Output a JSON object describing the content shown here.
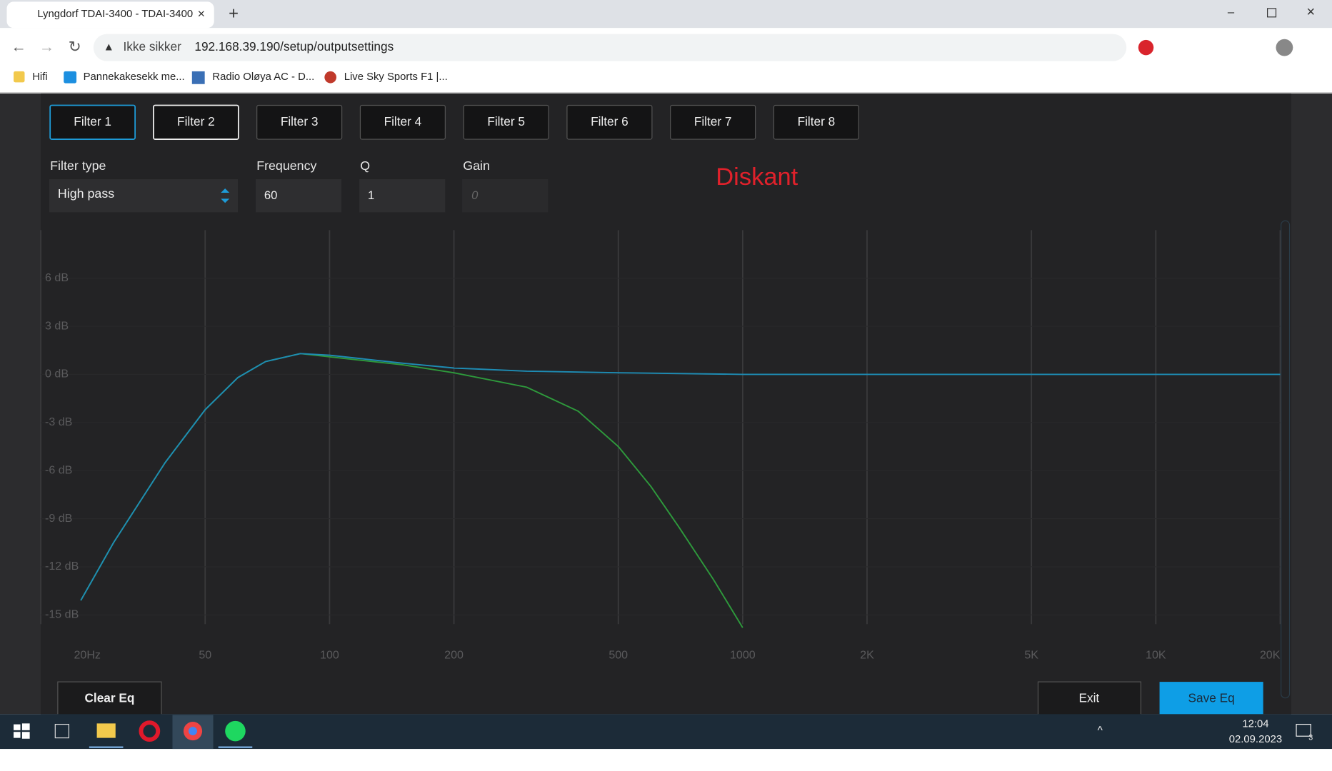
{
  "browser": {
    "tab_title": "Lyngdorf TDAI-3400 - TDAI-3400",
    "security_label": "Ikke sikker",
    "url": "192.168.39.190/setup/outputsettings",
    "bookmarks": [
      "Hifi",
      "Pannekakesekk me...",
      "Radio Oløya AC - D...",
      "Live Sky Sports F1 |..."
    ]
  },
  "filter_tabs": [
    "Filter 1",
    "Filter 2",
    "Filter 3",
    "Filter 4",
    "Filter 5",
    "Filter 6",
    "Filter 7",
    "Filter 8"
  ],
  "fields": {
    "filter_type": {
      "label": "Filter type",
      "value": "High pass"
    },
    "frequency": {
      "label": "Frequency",
      "value": 60
    },
    "q": {
      "label": "Q",
      "value": 1
    },
    "gain": {
      "label": "Gain",
      "placeholder": 0
    }
  },
  "annotation": "Diskant",
  "chart_data": {
    "type": "line",
    "xscale": "log",
    "xlim": [
      20,
      20000
    ],
    "ylim": [
      -16,
      9
    ],
    "xticks": [
      {
        "value": 20,
        "label": "20Hz"
      },
      50,
      100,
      200,
      500,
      1000,
      {
        "value": 2000,
        "label": "2K"
      },
      {
        "value": 5000,
        "label": "5K"
      },
      {
        "value": 10000,
        "label": "10K"
      },
      {
        "value": 20000,
        "label": "20K"
      }
    ],
    "yticks": [
      {
        "value": 6,
        "label": "6 dB"
      },
      {
        "value": 3,
        "label": "3 dB"
      },
      {
        "value": 0,
        "label": "0 dB"
      },
      {
        "value": -3,
        "label": "-3 dB"
      },
      {
        "value": -6,
        "label": "-6 dB"
      },
      {
        "value": -9,
        "label": "-9 dB"
      },
      {
        "value": -12,
        "label": "-12 dB"
      },
      {
        "value": -15,
        "label": "-15 dB"
      }
    ],
    "series": [
      {
        "color": "#1e8cb4",
        "x": [
          25,
          30,
          40,
          50,
          60,
          70,
          85,
          100,
          150,
          200,
          300,
          500,
          1000,
          20000
        ],
        "values": [
          -14.1,
          -10.5,
          -5.5,
          -2.2,
          -0.2,
          0.8,
          1.3,
          1.2,
          0.7,
          0.4,
          0.2,
          0.1,
          0,
          0
        ]
      },
      {
        "color": "#2e9a3c",
        "x": [
          25,
          30,
          40,
          50,
          60,
          70,
          85,
          100,
          150,
          200,
          300,
          400,
          500,
          600,
          700,
          850,
          1000
        ],
        "values": [
          -14.1,
          -10.5,
          -5.5,
          -2.2,
          -0.2,
          0.8,
          1.3,
          1.1,
          0.6,
          0.1,
          -0.8,
          -2.3,
          -4.5,
          -7,
          -9.5,
          -12.8,
          -15.8
        ]
      }
    ]
  },
  "buttons": {
    "clear": "Clear Eq",
    "exit": "Exit",
    "save": "Save Eq"
  },
  "taskbar": {
    "time": "12:04",
    "date": "02.09.2023",
    "notifications": 3
  }
}
